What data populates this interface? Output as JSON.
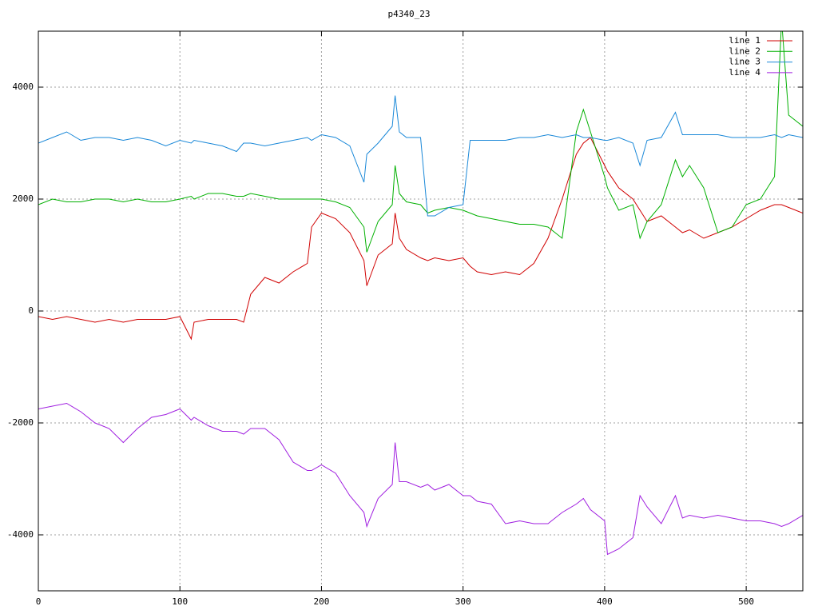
{
  "chart_data": {
    "type": "line",
    "title": "p4340_23",
    "x": [
      0,
      10,
      20,
      30,
      40,
      50,
      60,
      70,
      80,
      90,
      100,
      108,
      110,
      120,
      130,
      140,
      145,
      150,
      160,
      170,
      180,
      190,
      193,
      200,
      210,
      220,
      230,
      232,
      240,
      250,
      252,
      255,
      260,
      270,
      275,
      280,
      290,
      300,
      305,
      310,
      320,
      330,
      340,
      350,
      360,
      370,
      380,
      385,
      390,
      400,
      402,
      410,
      420,
      425,
      430,
      440,
      450,
      455,
      460,
      470,
      480,
      490,
      500,
      510,
      520,
      525,
      530,
      540
    ],
    "series": [
      {
        "name": "line 1",
        "color": "#d00000",
        "values": [
          -100,
          -150,
          -100,
          -150,
          -200,
          -150,
          -200,
          -150,
          -150,
          -150,
          -100,
          -500,
          -200,
          -150,
          -150,
          -150,
          -200,
          300,
          600,
          500,
          700,
          850,
          1500,
          1750,
          1650,
          1400,
          900,
          450,
          1000,
          1200,
          1750,
          1300,
          1100,
          950,
          900,
          950,
          900,
          950,
          800,
          700,
          650,
          700,
          650,
          850,
          1300,
          2000,
          2800,
          3000,
          3100,
          2600,
          2500,
          2200,
          2000,
          1800,
          1600,
          1700,
          1500,
          1400,
          1450,
          1300,
          1400,
          1500,
          1650,
          1800,
          1900,
          1900,
          1850,
          1750
        ]
      },
      {
        "name": "line 2",
        "color": "#00b000",
        "values": [
          1900,
          2000,
          1950,
          1950,
          2000,
          2000,
          1950,
          2000,
          1950,
          1950,
          2000,
          2050,
          2000,
          2100,
          2100,
          2050,
          2050,
          2100,
          2050,
          2000,
          2000,
          2000,
          2000,
          2000,
          1950,
          1850,
          1500,
          1050,
          1600,
          1900,
          2600,
          2100,
          1950,
          1900,
          1750,
          1800,
          1850,
          1800,
          1750,
          1700,
          1650,
          1600,
          1550,
          1550,
          1500,
          1300,
          3200,
          3600,
          3200,
          2400,
          2200,
          1800,
          1900,
          1300,
          1600,
          1900,
          2700,
          2400,
          2600,
          2200,
          1400,
          1500,
          1900,
          2000,
          2400,
          5200,
          3500,
          3300
        ]
      },
      {
        "name": "line 3",
        "color": "#1a88d8",
        "values": [
          3000,
          3100,
          3200,
          3050,
          3100,
          3100,
          3050,
          3100,
          3050,
          2950,
          3050,
          3000,
          3050,
          3000,
          2950,
          2850,
          3000,
          3000,
          2950,
          3000,
          3050,
          3100,
          3050,
          3150,
          3100,
          2950,
          2300,
          2800,
          3000,
          3300,
          3850,
          3200,
          3100,
          3100,
          1700,
          1700,
          1850,
          1900,
          3050,
          3050,
          3050,
          3050,
          3100,
          3100,
          3150,
          3100,
          3150,
          3100,
          3100,
          3050,
          3050,
          3100,
          3000,
          2600,
          3050,
          3100,
          3550,
          3150,
          3150,
          3150,
          3150,
          3100,
          3100,
          3100,
          3150,
          3100,
          3150,
          3100
        ]
      },
      {
        "name": "line 4",
        "color": "#a020e0",
        "values": [
          -1750,
          -1700,
          -1650,
          -1800,
          -2000,
          -2100,
          -2350,
          -2100,
          -1900,
          -1850,
          -1750,
          -1950,
          -1900,
          -2050,
          -2150,
          -2150,
          -2200,
          -2100,
          -2100,
          -2300,
          -2700,
          -2850,
          -2850,
          -2750,
          -2900,
          -3300,
          -3600,
          -3850,
          -3350,
          -3100,
          -2350,
          -3050,
          -3050,
          -3150,
          -3100,
          -3200,
          -3100,
          -3300,
          -3300,
          -3400,
          -3450,
          -3800,
          -3750,
          -3800,
          -3800,
          -3600,
          -3450,
          -3350,
          -3550,
          -3750,
          -4350,
          -4250,
          -4050,
          -3300,
          -3500,
          -3800,
          -3300,
          -3700,
          -3650,
          -3700,
          -3650,
          -3700,
          -3750,
          -3750,
          -3800,
          -3850,
          -3800,
          -3650
        ]
      }
    ],
    "xlim": [
      0,
      540
    ],
    "xticks": [
      0,
      100,
      200,
      300,
      400,
      500
    ],
    "ylim": [
      -5000,
      5000
    ],
    "yticks": [
      -4000,
      -2000,
      0,
      2000,
      4000
    ],
    "grid": true,
    "legend": "upper right"
  }
}
